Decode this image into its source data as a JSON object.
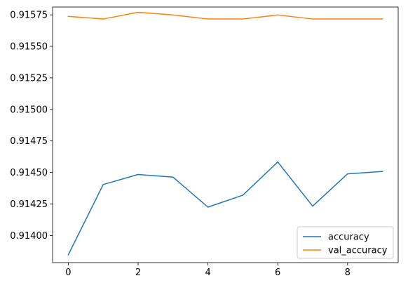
{
  "chart_data": {
    "type": "line",
    "title": "",
    "xlabel": "",
    "ylabel": "",
    "x": [
      0,
      1,
      2,
      3,
      4,
      5,
      6,
      7,
      8,
      9
    ],
    "xlim": [
      -0.45,
      9.45
    ],
    "ylim": [
      0.913785,
      0.915812
    ],
    "xticks": [
      0,
      2,
      4,
      6,
      8
    ],
    "xtick_labels": [
      "0",
      "2",
      "4",
      "6",
      "8"
    ],
    "yticks": [
      0.914,
      0.91425,
      0.9145,
      0.91475,
      0.915,
      0.91525,
      0.9155,
      0.91575
    ],
    "ytick_labels": [
      "0.91400",
      "0.91425",
      "0.91450",
      "0.91475",
      "0.91500",
      "0.91525",
      "0.91550",
      "0.91575"
    ],
    "grid": false,
    "legend_position": "lower-right",
    "series": [
      {
        "name": "accuracy",
        "color": "#1f77b4",
        "values": [
          0.913847,
          0.914404,
          0.914484,
          0.914463,
          0.914225,
          0.91432,
          0.914583,
          0.914233,
          0.914489,
          0.914508
        ]
      },
      {
        "name": "val_accuracy",
        "color": "#ff7f0e",
        "values": [
          0.915738,
          0.915717,
          0.91577,
          0.915749,
          0.915717,
          0.915717,
          0.915749,
          0.915717,
          0.915717,
          0.915717
        ]
      }
    ]
  }
}
